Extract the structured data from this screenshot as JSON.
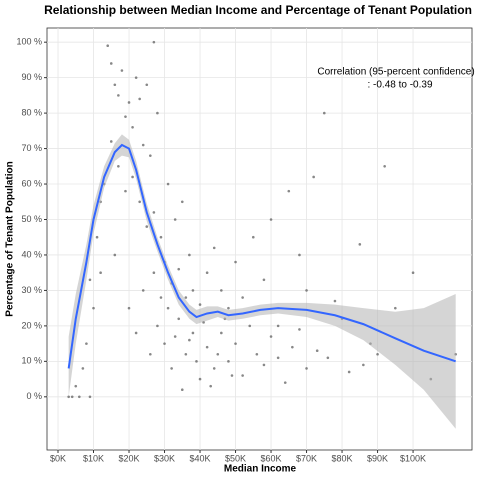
{
  "chart_data": {
    "type": "scatter",
    "title": "Relationship between Median Income and Percentage of Tenant Population",
    "x_label": "Median Income",
    "y_label": "Percentage of Tenant Population",
    "annotation": [
      "Correlation (95-percent confidence)",
      ": -0.48 to -0.39"
    ],
    "xlim": [
      -3100,
      116600
    ],
    "ylim": [
      -15,
      104
    ],
    "xticks": [
      {
        "value": 0,
        "label": "$0K"
      },
      {
        "value": 10000,
        "label": "$10K"
      },
      {
        "value": 20000,
        "label": "$20K"
      },
      {
        "value": 30000,
        "label": "$30K"
      },
      {
        "value": 40000,
        "label": "$40K"
      },
      {
        "value": 50000,
        "label": "$50K"
      },
      {
        "value": 60000,
        "label": "$60K"
      },
      {
        "value": 70000,
        "label": "$70K"
      },
      {
        "value": 80000,
        "label": "$80K"
      },
      {
        "value": 90000,
        "label": "$90K"
      },
      {
        "value": 100000,
        "label": "$100K"
      }
    ],
    "yticks": [
      {
        "value": 0,
        "label": "0 %"
      },
      {
        "value": 10,
        "label": "10 %"
      },
      {
        "value": 20,
        "label": "20 %"
      },
      {
        "value": 30,
        "label": "30 %"
      },
      {
        "value": 40,
        "label": "40 %"
      },
      {
        "value": 50,
        "label": "50 %"
      },
      {
        "value": 60,
        "label": "60 %"
      },
      {
        "value": 70,
        "label": "70 %"
      },
      {
        "value": 80,
        "label": "80 %"
      },
      {
        "value": 90,
        "label": "90 %"
      },
      {
        "value": 100,
        "label": "100 %"
      }
    ],
    "grid": true,
    "points": {
      "color": "#555555",
      "x": [
        3000,
        4000,
        6000,
        9000,
        5000,
        7000,
        8000,
        10000,
        9000,
        11000,
        12000,
        13000,
        14000,
        15000,
        16000,
        17000,
        18000,
        19000,
        20000,
        21000,
        22000,
        23000,
        24000,
        25000,
        26000,
        27000,
        28000,
        15000,
        17000,
        19000,
        21000,
        23000,
        25000,
        27000,
        29000,
        31000,
        33000,
        35000,
        37000,
        30000,
        32000,
        34000,
        36000,
        38000,
        40000,
        42000,
        44000,
        46000,
        48000,
        50000,
        52000,
        55000,
        58000,
        60000,
        62000,
        65000,
        68000,
        70000,
        72000,
        75000,
        78000,
        80000,
        85000,
        88000,
        92000,
        95000,
        100000,
        105000,
        112000,
        20000,
        22000,
        24000,
        26000,
        28000,
        30000,
        32000,
        34000,
        36000,
        38000,
        40000,
        42000,
        44000,
        46000,
        48000,
        50000,
        52000,
        54000,
        56000,
        58000,
        60000,
        62000,
        64000,
        66000,
        68000,
        70000,
        73000,
        76000,
        82000,
        86000,
        90000,
        35000,
        39000,
        41000,
        43000,
        45000,
        47000,
        49000,
        31000,
        33000,
        27000,
        29000,
        37000,
        16000,
        12000
      ],
      "values": [
        0,
        0,
        0,
        0,
        3,
        8,
        15,
        25,
        33,
        45,
        55,
        60,
        99,
        94,
        88,
        85,
        92,
        79,
        83,
        76,
        90,
        84,
        71,
        88,
        68,
        100,
        80,
        72,
        65,
        58,
        62,
        55,
        48,
        52,
        45,
        60,
        50,
        55,
        40,
        38,
        32,
        36,
        28,
        30,
        26,
        35,
        42,
        30,
        25,
        38,
        28,
        45,
        33,
        50,
        20,
        58,
        40,
        30,
        62,
        80,
        27,
        22,
        43,
        15,
        65,
        25,
        35,
        5,
        12,
        25,
        18,
        30,
        12,
        20,
        15,
        8,
        22,
        12,
        18,
        5,
        14,
        8,
        18,
        10,
        15,
        6,
        20,
        12,
        9,
        17,
        11,
        4,
        14,
        19,
        8,
        13,
        11,
        7,
        9,
        12,
        2,
        10,
        21,
        3,
        12,
        22,
        6,
        25,
        17,
        35,
        28,
        16,
        40,
        35
      ]
    },
    "smooth": {
      "color": "#3366ff",
      "band_color": "#b3b3b3",
      "x": [
        3000,
        5000,
        8000,
        10000,
        13000,
        16000,
        18000,
        20000,
        22000,
        25000,
        28000,
        31000,
        34000,
        37000,
        39000,
        42000,
        45000,
        48000,
        52000,
        57000,
        62000,
        70000,
        78000,
        86000,
        95000,
        103000,
        112000
      ],
      "values": [
        8,
        22,
        38,
        50,
        62,
        69,
        71,
        70,
        64,
        52,
        43,
        35,
        28,
        24,
        22.5,
        23.5,
        24,
        23,
        23.5,
        24.5,
        25,
        24.5,
        23,
        20.5,
        16.5,
        13,
        10
      ],
      "lower": [
        0,
        15,
        33,
        46,
        59,
        66.5,
        68,
        67.5,
        61.5,
        49.5,
        41,
        33,
        26,
        22,
        20.5,
        21.5,
        22.5,
        21.5,
        22,
        23,
        23.5,
        22.5,
        20,
        16,
        9,
        2,
        -9
      ],
      "upper": [
        17,
        29,
        43,
        54,
        65,
        71.5,
        74,
        72.5,
        66.5,
        54.5,
        45,
        37,
        30,
        26,
        24.5,
        25.5,
        25.5,
        24.5,
        25,
        26,
        26.5,
        26.5,
        26,
        25,
        24,
        25,
        29
      ]
    }
  }
}
